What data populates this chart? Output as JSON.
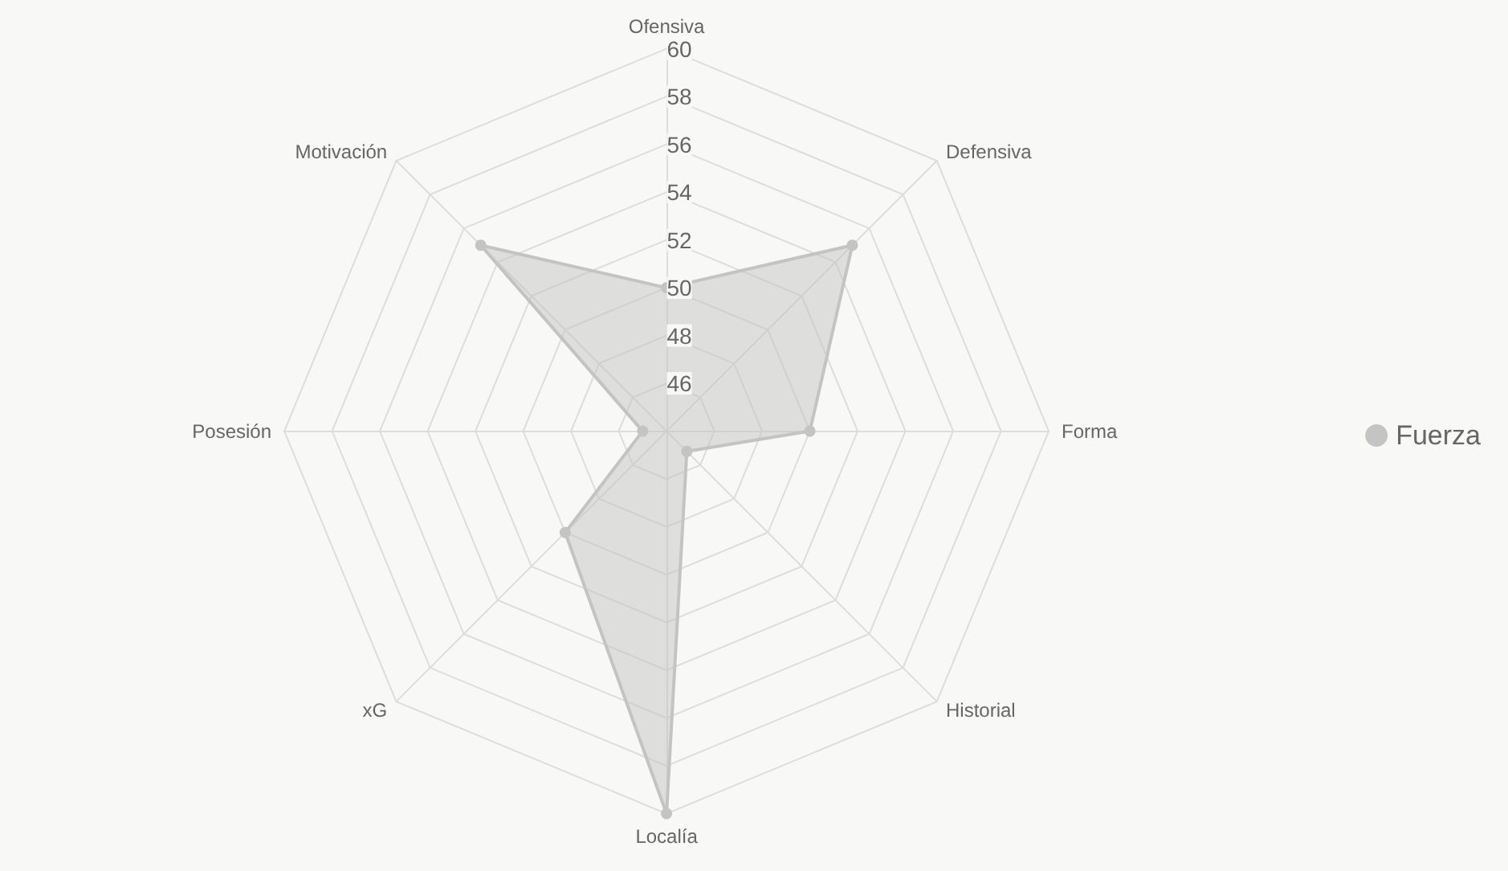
{
  "chart_data": {
    "type": "radar",
    "categories": [
      "Ofensiva",
      "Defensiva",
      "Forma",
      "Historial",
      "Localía",
      "xG",
      "Posesión",
      "Motivación"
    ],
    "series": [
      {
        "name": "Fuerza",
        "color": "#c4c4c4",
        "values": [
          50,
          55,
          50,
          45.2,
          60,
          50,
          45,
          55
        ]
      }
    ],
    "ylim": [
      44,
      60
    ],
    "yticks": [
      46,
      48,
      50,
      52,
      54,
      56,
      58,
      60
    ],
    "legend": "right",
    "marker": "circle"
  }
}
